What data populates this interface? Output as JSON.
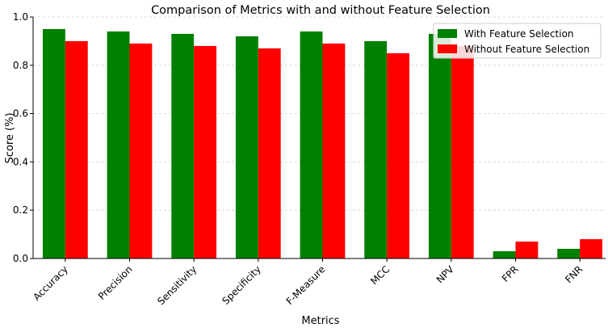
{
  "chart_data": {
    "type": "bar",
    "title": "Comparison of Metrics with and without Feature Selection",
    "xlabel": "Metrics",
    "ylabel": "Score (%)",
    "ylim": [
      0,
      1.0
    ],
    "yticks": [
      "0.0",
      "0.2",
      "0.4",
      "0.6",
      "0.8",
      "1.0"
    ],
    "grid": "horizontal dashed",
    "legend_position": "top-right",
    "categories": [
      "Accuracy",
      "Precision",
      "Sensitivity",
      "Specificity",
      "F-Measure",
      "MCC",
      "NPV",
      "FPR",
      "FNR"
    ],
    "series": [
      {
        "name": "With Feature Selection",
        "color": "#008000",
        "values": [
          0.95,
          0.94,
          0.93,
          0.92,
          0.94,
          0.9,
          0.93,
          0.03,
          0.04
        ]
      },
      {
        "name": "Without Feature Selection",
        "color": "#ff0000",
        "values": [
          0.9,
          0.89,
          0.88,
          0.87,
          0.89,
          0.85,
          0.88,
          0.07,
          0.08
        ]
      }
    ]
  }
}
